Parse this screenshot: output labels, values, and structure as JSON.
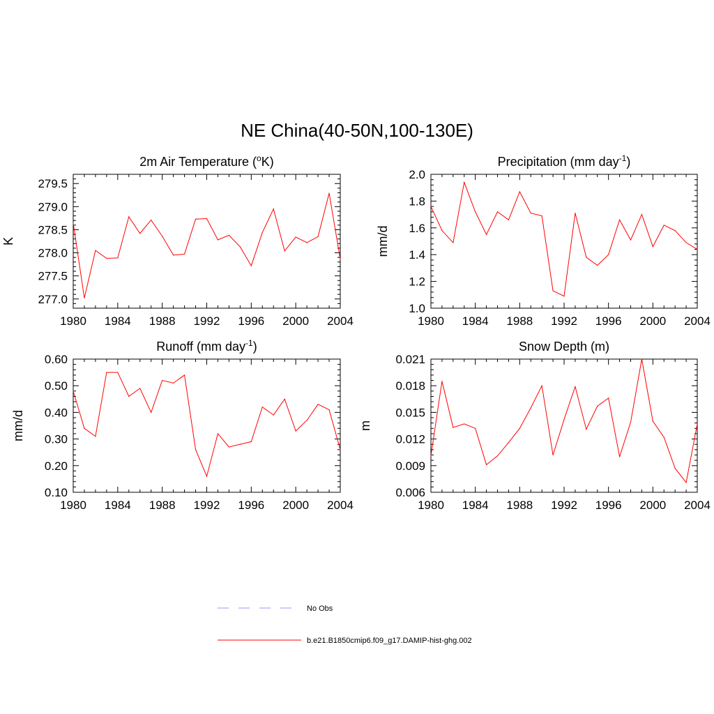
{
  "figure": {
    "title": "NE China(40-50N,100-130E)"
  },
  "legend": {
    "items": [
      {
        "label": "No Obs",
        "color": "#9999ff",
        "style": "dashed"
      },
      {
        "label": "b.e21.B1850cmip6.f09_g17.DAMIP-hist-ghg.002",
        "color": "#ff0000",
        "style": "solid"
      }
    ]
  },
  "chart_data": [
    {
      "id": "temp",
      "type": "line",
      "title": "2m Air Temperature (oK)",
      "title_parts": {
        "prefix": "2m Air Temperature (",
        "sup": "o",
        "suffix": "K)"
      },
      "xlabel": "",
      "ylabel": "K",
      "xlim": [
        1980,
        2004
      ],
      "ylim": [
        276.8,
        279.7
      ],
      "xticks": [
        1980,
        1984,
        1988,
        1992,
        1996,
        2000,
        2004
      ],
      "yticks": [
        277.0,
        277.5,
        278.0,
        278.5,
        279.0,
        279.5
      ],
      "ytick_labels": [
        "277.0",
        "277.5",
        "278.0",
        "278.5",
        "279.0",
        "279.5"
      ],
      "grid": false,
      "series": [
        {
          "color": "#ff0000",
          "x": [
            1980,
            1981,
            1982,
            1983,
            1984,
            1985,
            1986,
            1987,
            1988,
            1989,
            1990,
            1991,
            1992,
            1993,
            1994,
            1995,
            1996,
            1997,
            1998,
            1999,
            2000,
            2001,
            2002,
            2003,
            2004
          ],
          "y": [
            278.65,
            277.02,
            278.05,
            277.88,
            277.89,
            278.78,
            278.42,
            278.71,
            278.36,
            277.95,
            277.97,
            278.73,
            278.74,
            278.28,
            278.38,
            278.13,
            277.72,
            278.44,
            278.95,
            278.04,
            278.34,
            278.22,
            278.35,
            279.29,
            277.86
          ]
        }
      ]
    },
    {
      "id": "precip",
      "type": "line",
      "title": "Precipitation (mm day-1)",
      "title_parts": {
        "prefix": "Precipitation (mm day",
        "sup": "-1",
        "suffix": ")"
      },
      "xlabel": "",
      "ylabel": "mm/d",
      "xlim": [
        1980,
        2004
      ],
      "ylim": [
        1.0,
        2.0
      ],
      "xticks": [
        1980,
        1984,
        1988,
        1992,
        1996,
        2000,
        2004
      ],
      "yticks": [
        1.0,
        1.2,
        1.4,
        1.6,
        1.8,
        2.0
      ],
      "ytick_labels": [
        "1.0",
        "1.2",
        "1.4",
        "1.6",
        "1.8",
        "2.0"
      ],
      "grid": false,
      "series": [
        {
          "color": "#ff0000",
          "x": [
            1980,
            1981,
            1982,
            1983,
            1984,
            1985,
            1986,
            1987,
            1988,
            1989,
            1990,
            1991,
            1992,
            1993,
            1994,
            1995,
            1996,
            1997,
            1998,
            1999,
            2000,
            2001,
            2002,
            2003,
            2004
          ],
          "y": [
            1.76,
            1.58,
            1.49,
            1.94,
            1.72,
            1.55,
            1.72,
            1.66,
            1.87,
            1.71,
            1.69,
            1.13,
            1.09,
            1.71,
            1.38,
            1.32,
            1.4,
            1.66,
            1.51,
            1.7,
            1.46,
            1.62,
            1.58,
            1.49,
            1.44
          ]
        }
      ]
    },
    {
      "id": "runoff",
      "type": "line",
      "title": "Runoff (mm day-1)",
      "title_parts": {
        "prefix": "Runoff (mm day",
        "sup": "-1",
        "suffix": ")"
      },
      "xlabel": "",
      "ylabel": "mm/d",
      "xlim": [
        1980,
        2004
      ],
      "ylim": [
        0.1,
        0.6
      ],
      "xticks": [
        1980,
        1984,
        1988,
        1992,
        1996,
        2000,
        2004
      ],
      "yticks": [
        0.1,
        0.2,
        0.3,
        0.4,
        0.5,
        0.6
      ],
      "ytick_labels": [
        "0.10",
        "0.20",
        "0.30",
        "0.40",
        "0.50",
        "0.60"
      ],
      "grid": false,
      "series": [
        {
          "color": "#ff0000",
          "x": [
            1980,
            1981,
            1982,
            1983,
            1984,
            1985,
            1986,
            1987,
            1988,
            1989,
            1990,
            1991,
            1992,
            1993,
            1994,
            1995,
            1996,
            1997,
            1998,
            1999,
            2000,
            2001,
            2002,
            2003,
            2004
          ],
          "y": [
            0.48,
            0.34,
            0.31,
            0.55,
            0.55,
            0.46,
            0.49,
            0.4,
            0.52,
            0.51,
            0.54,
            0.26,
            0.16,
            0.32,
            0.27,
            0.28,
            0.29,
            0.42,
            0.39,
            0.45,
            0.33,
            0.37,
            0.43,
            0.41,
            0.26
          ]
        }
      ]
    },
    {
      "id": "snow",
      "type": "line",
      "title": "Snow Depth (m)",
      "title_parts": {
        "prefix": "Snow Depth (m)",
        "sup": "",
        "suffix": ""
      },
      "xlabel": "",
      "ylabel": "m",
      "xlim": [
        1980,
        2004
      ],
      "ylim": [
        0.006,
        0.021
      ],
      "xticks": [
        1980,
        1984,
        1988,
        1992,
        1996,
        2000,
        2004
      ],
      "yticks": [
        0.006,
        0.009,
        0.012,
        0.015,
        0.018,
        0.021
      ],
      "ytick_labels": [
        "0.006",
        "0.009",
        "0.012",
        "0.015",
        "0.018",
        "0.021"
      ],
      "grid": false,
      "series": [
        {
          "color": "#ff0000",
          "x": [
            1980,
            1981,
            1982,
            1983,
            1984,
            1985,
            1986,
            1987,
            1988,
            1989,
            1990,
            1991,
            1992,
            1993,
            1994,
            1995,
            1996,
            1997,
            1998,
            1999,
            2000,
            2001,
            2002,
            2003,
            2004
          ],
          "y": [
            0.0101,
            0.0185,
            0.0133,
            0.0137,
            0.0132,
            0.0091,
            0.0101,
            0.0116,
            0.0132,
            0.0155,
            0.018,
            0.0102,
            0.0142,
            0.0179,
            0.0131,
            0.0157,
            0.0166,
            0.01,
            0.0139,
            0.021,
            0.014,
            0.0122,
            0.0087,
            0.0071,
            0.0137
          ]
        }
      ]
    }
  ]
}
